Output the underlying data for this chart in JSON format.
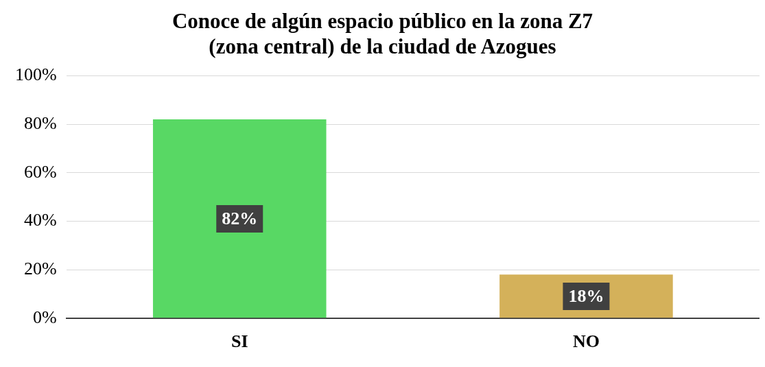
{
  "chart_data": {
    "type": "bar",
    "title": "Conoce de algún espacio público en la zona Z7\n(zona central) de la ciudad de Azogues",
    "categories": [
      "SI",
      "NO"
    ],
    "values": [
      82,
      18
    ],
    "colors": [
      "#58d864",
      "#d4b15a"
    ],
    "value_labels": [
      "82%",
      "18%"
    ],
    "ylim": [
      0,
      100
    ],
    "yticks": [
      {
        "value": 0,
        "label": "0%"
      },
      {
        "value": 20,
        "label": "20%"
      },
      {
        "value": 40,
        "label": "40%"
      },
      {
        "value": 60,
        "label": "60%"
      },
      {
        "value": 80,
        "label": "80%"
      },
      {
        "value": 100,
        "label": "100%"
      }
    ],
    "grid": "y",
    "legend": false
  }
}
